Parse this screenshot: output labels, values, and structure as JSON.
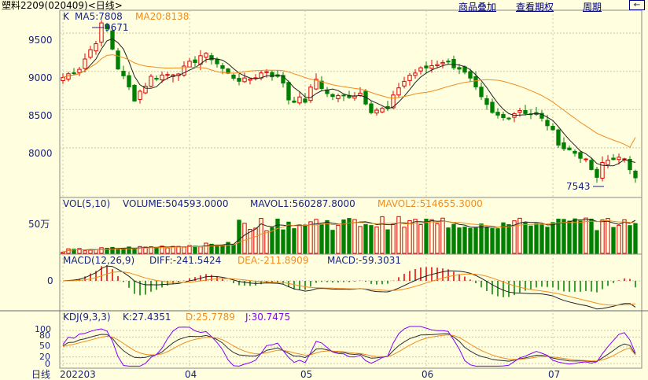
{
  "header": {
    "title": "塑料2209(020409)<日线>",
    "links": [
      "商品叠加",
      "查看期权",
      "周期"
    ],
    "nav_icon": "arrow-left-icon"
  },
  "colors": {
    "background": "#ffffe0",
    "grid": "#c8c8a8",
    "up": "#e00000",
    "down": "#008000",
    "ma5": "#202020",
    "ma20": "#f08c1e",
    "kdj_k": "#303030",
    "kdj_d": "#f08c1e",
    "kdj_j": "#8000ff",
    "text": "#1a237e"
  },
  "panels": {
    "kline": {
      "label": "K",
      "ma5": "MA5:7808",
      "ma20": "MA20:8138",
      "high_label": "9671",
      "low_label": "7543"
    },
    "volume": {
      "label": "VOL(5,10)",
      "volume": "VOLUME:504593.0000",
      "mavol1": "MAVOL1:560287.8000",
      "mavol2": "MAVOL2:514655.3000",
      "tick": "50万"
    },
    "macd": {
      "label": "MACD(12,26,9)",
      "diff": "DIFF:-241.5424",
      "dea": "DEA:-211.8909",
      "macd": "MACD:-59.3031",
      "tick": "0"
    },
    "kdj": {
      "label": "KDJ(9,3,3)",
      "k": "K:27.4351",
      "d": "D:25.7789",
      "j": "J:30.7475",
      "ticks": [
        "100",
        "80",
        "50",
        "20",
        "0"
      ]
    }
  },
  "chart_data": {
    "type": "candlestick",
    "y_ticks": [
      "9500",
      "9000",
      "8500",
      "8000"
    ],
    "ylim": [
      7350,
      9800
    ],
    "x_labels": [
      "202203",
      "04",
      "05",
      "06",
      "07"
    ],
    "x_label_index": [
      0,
      23,
      44,
      66,
      89
    ],
    "footer_label": "日线",
    "days": 105,
    "anchors": [
      [
        0,
        8920
      ],
      [
        3,
        9050
      ],
      [
        6,
        9400
      ],
      [
        7,
        9600
      ],
      [
        8,
        9550
      ],
      [
        10,
        9050
      ],
      [
        13,
        8650
      ],
      [
        16,
        8920
      ],
      [
        19,
        8960
      ],
      [
        22,
        9030
      ],
      [
        25,
        9210
      ],
      [
        27,
        9180
      ],
      [
        30,
        8960
      ],
      [
        33,
        8870
      ],
      [
        37,
        9010
      ],
      [
        40,
        8860
      ],
      [
        41,
        8640
      ],
      [
        44,
        8620
      ],
      [
        46,
        8900
      ],
      [
        48,
        8700
      ],
      [
        50,
        8660
      ],
      [
        54,
        8720
      ],
      [
        56,
        8500
      ],
      [
        59,
        8500
      ],
      [
        61,
        8800
      ],
      [
        63,
        8950
      ],
      [
        66,
        9050
      ],
      [
        69,
        9140
      ],
      [
        72,
        9050
      ],
      [
        74,
        8880
      ],
      [
        76,
        8630
      ],
      [
        78,
        8440
      ],
      [
        80,
        8390
      ],
      [
        83,
        8500
      ],
      [
        86,
        8420
      ],
      [
        88,
        8310
      ],
      [
        90,
        8080
      ],
      [
        91,
        8000
      ],
      [
        94,
        7900
      ],
      [
        96,
        7720
      ],
      [
        97,
        7580
      ],
      [
        98,
        7800
      ],
      [
        100,
        7880
      ],
      [
        102,
        7820
      ],
      [
        104,
        7650
      ]
    ],
    "high": {
      "index": 7,
      "value": 9671
    },
    "low": {
      "index": 97,
      "value": 7543
    },
    "last": {
      "ma5": 7808,
      "ma20": 8138,
      "volume": 504593,
      "mavol1": 560287.8,
      "mavol2": 514655.3,
      "diff": -241.5424,
      "dea": -211.8909,
      "macd": -59.3031,
      "k": 27.4351,
      "d": 25.7789,
      "j": 30.7475
    }
  }
}
